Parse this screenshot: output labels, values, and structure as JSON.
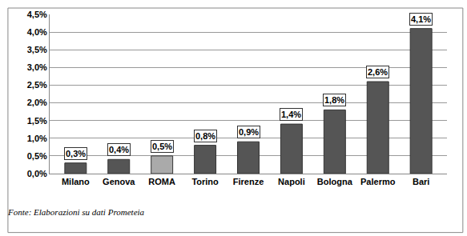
{
  "chart_data": {
    "type": "bar",
    "categories": [
      "Milano",
      "Genova",
      "ROMA",
      "Torino",
      "Firenze",
      "Napoli",
      "Bologna",
      "Palermo",
      "Bari"
    ],
    "values": [
      0.3,
      0.4,
      0.5,
      0.8,
      0.9,
      1.4,
      1.8,
      2.6,
      4.1
    ],
    "value_labels": [
      "0,3%",
      "0,4%",
      "0,5%",
      "0,8%",
      "0,9%",
      "1,4%",
      "1,8%",
      "2,6%",
      "4,1%"
    ],
    "colors": [
      "#555555",
      "#555555",
      "#aaaaaa",
      "#555555",
      "#555555",
      "#555555",
      "#555555",
      "#555555",
      "#555555"
    ],
    "data_labels": true,
    "ylim": [
      0,
      4.5
    ],
    "yticks": [
      {
        "value": 0,
        "label": "0,0%"
      },
      {
        "value": 0.5,
        "label": "0,5%"
      },
      {
        "value": 1,
        "label": "1,0%"
      },
      {
        "value": 1.5,
        "label": "1,5%"
      },
      {
        "value": 2,
        "label": "2,0%"
      },
      {
        "value": 2.5,
        "label": "2,5%"
      },
      {
        "value": 3,
        "label": "3,0%"
      },
      {
        "value": 3.5,
        "label": "3,5%"
      },
      {
        "value": 4,
        "label": "4,0%"
      },
      {
        "value": 4.5,
        "label": "4,5%"
      }
    ],
    "grid": true,
    "annotations": [
      "Fonte: Elaborazioni su dati Prometeia"
    ]
  }
}
